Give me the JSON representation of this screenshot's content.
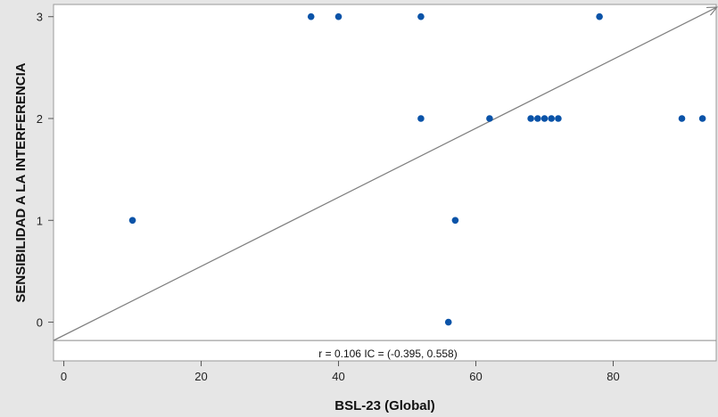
{
  "chart_data": {
    "type": "scatter",
    "title": "",
    "xlabel": "BSL-23 (Global)",
    "ylabel": "SENSIBILIDAD A LA INTERFERENCIA",
    "xlim": [
      -1.5,
      95
    ],
    "ylim": [
      -0.38,
      3.12
    ],
    "xticks": [
      0,
      20,
      40,
      60,
      80
    ],
    "yticks": [
      0,
      1,
      2,
      3
    ],
    "grid": false,
    "points": [
      {
        "x": 10,
        "y": 1
      },
      {
        "x": 36,
        "y": 3
      },
      {
        "x": 40,
        "y": 3
      },
      {
        "x": 52,
        "y": 3
      },
      {
        "x": 78,
        "y": 3
      },
      {
        "x": 52,
        "y": 2
      },
      {
        "x": 62,
        "y": 2
      },
      {
        "x": 68,
        "y": 2
      },
      {
        "x": 69,
        "y": 2
      },
      {
        "x": 70,
        "y": 2
      },
      {
        "x": 71,
        "y": 2
      },
      {
        "x": 72,
        "y": 2
      },
      {
        "x": 90,
        "y": 2
      },
      {
        "x": 93,
        "y": 2
      },
      {
        "x": 57,
        "y": 1
      },
      {
        "x": 56,
        "y": 0
      }
    ],
    "reference_line": {
      "from": [
        -1.5,
        -0.18
      ],
      "to": [
        95,
        3.09
      ],
      "arrow": true
    },
    "baseline_y": -0.18,
    "annotation": "r = 0.106  IC = (-0.395, 0.558)",
    "colors": {
      "points": "#0a53a8",
      "line": "#7f7f7f",
      "plot_bg": "#ffffff",
      "page_bg": "#e6e6e6"
    }
  }
}
